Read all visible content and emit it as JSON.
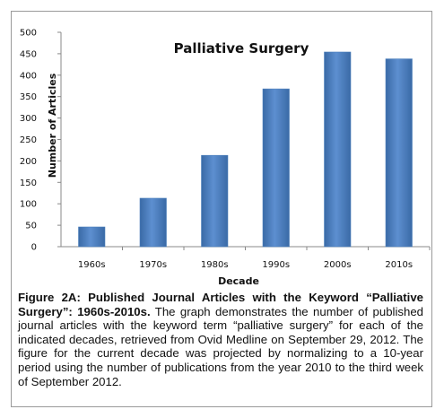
{
  "chart_data": {
    "type": "bar",
    "title": "Palliative Surgery",
    "xlabel": "Decade",
    "ylabel": "Number of Articles",
    "categories": [
      "1960s",
      "1970s",
      "1980s",
      "1990s",
      "2000s",
      "2010s"
    ],
    "values": [
      46,
      113,
      213,
      368,
      454,
      438
    ],
    "ylim": [
      0,
      500
    ],
    "yticks": [
      "0",
      "50",
      "100",
      "150",
      "200",
      "250",
      "300",
      "350",
      "400",
      "450",
      "500"
    ],
    "grid": false,
    "legend": "none",
    "bar_color": "#4a7ebb"
  },
  "caption": {
    "bold": "Figure 2A:  Published Journal Articles with the Keyword “Palliative Surgery”: 1960s-2010s.",
    "text": " The graph demonstrates the number of published journal articles with the keyword term “palliative surgery” for each of the indicated decades, retrieved from Ovid Medline on September 29, 2012. The figure for the current decade was projected by normalizing to a 10-year period using the number of publications from the year 2010 to the third week of September 2012."
  }
}
